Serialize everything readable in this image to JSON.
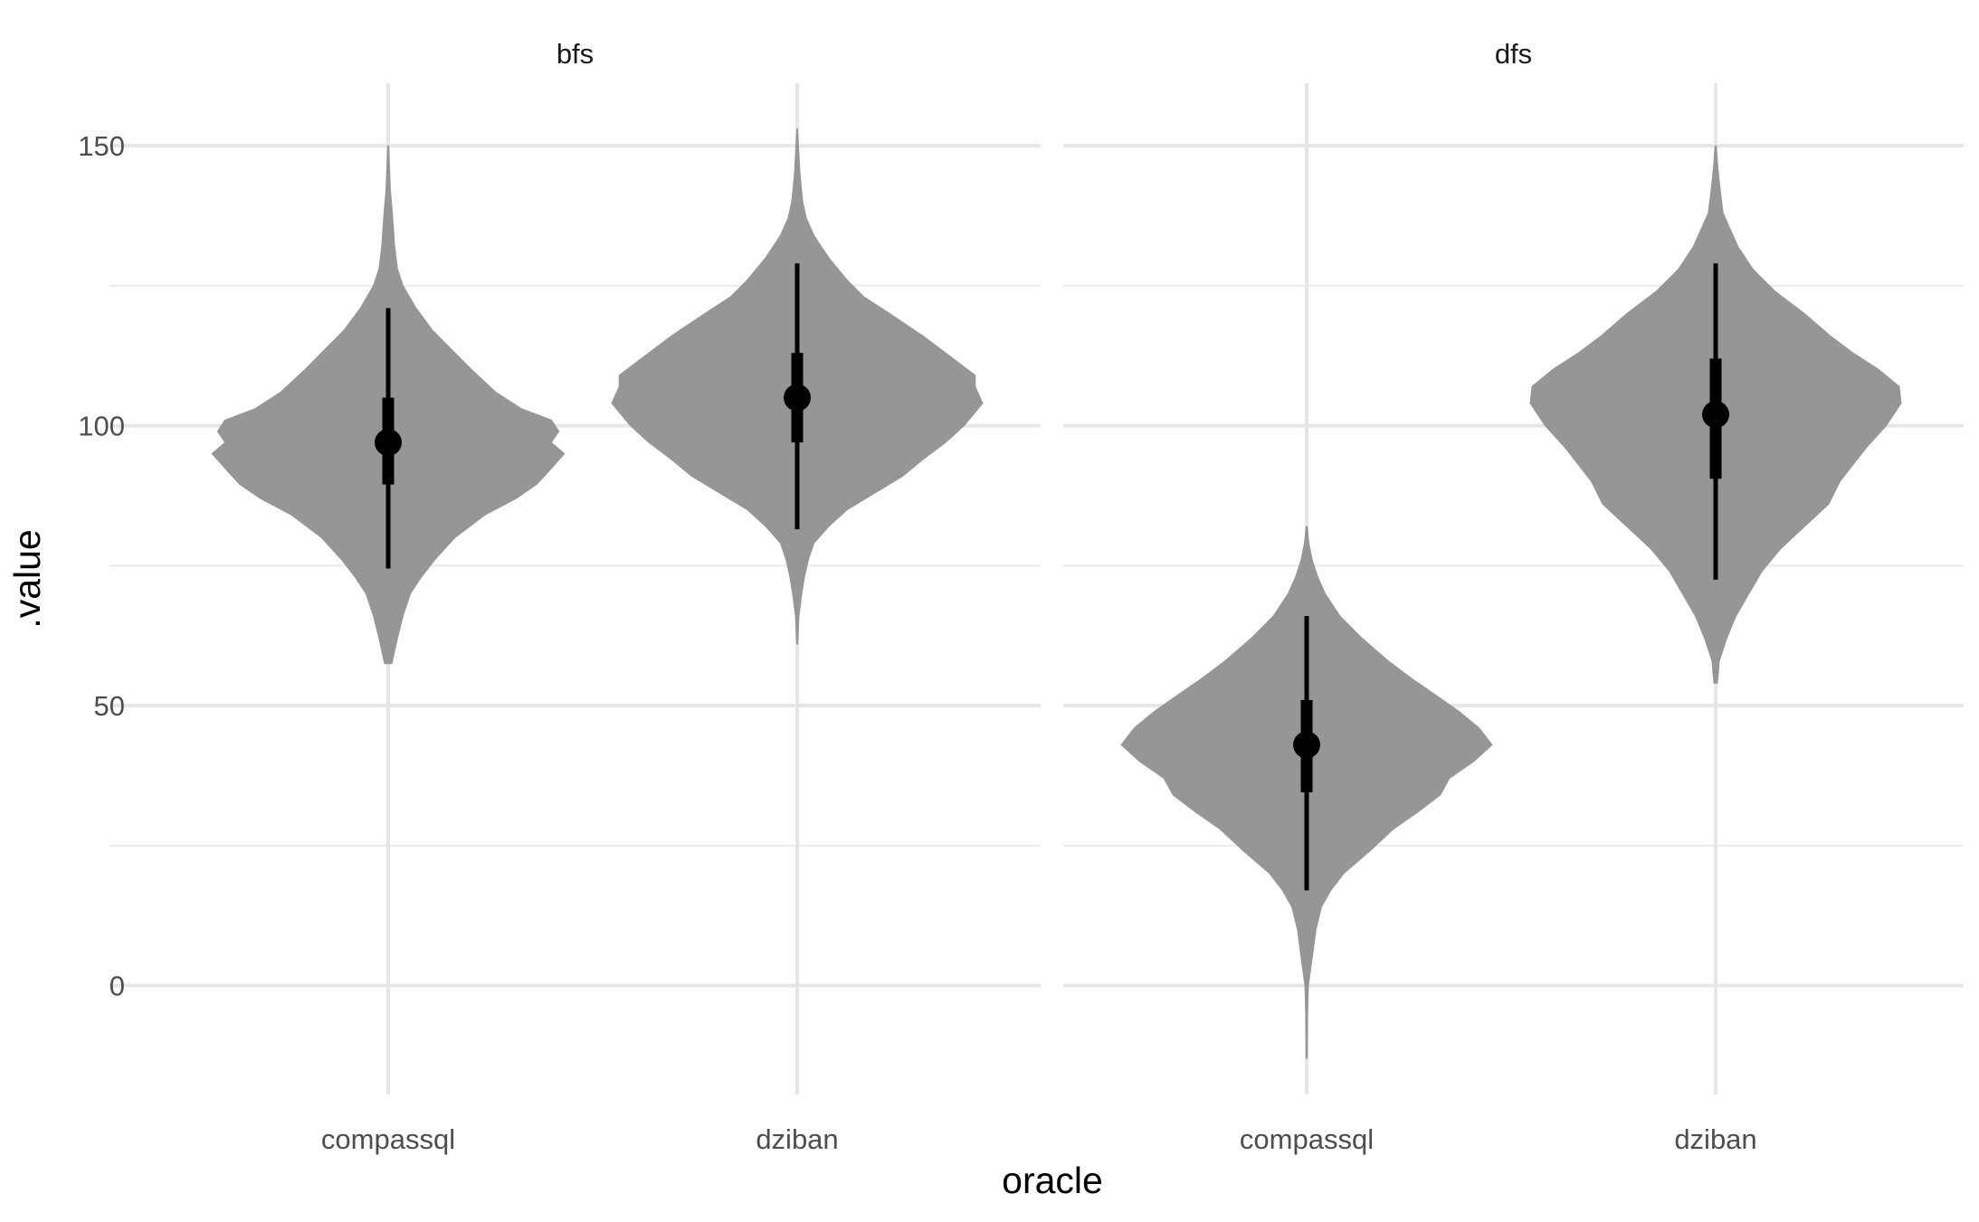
{
  "chart_data": {
    "type": "violin",
    "facets": [
      "bfs",
      "dfs"
    ],
    "categories": [
      "compassql",
      "dziban"
    ],
    "xlabel": "oracle",
    "ylabel": ".value",
    "ylim": [
      -20,
      160
    ],
    "yticks": [
      0,
      50,
      100,
      150
    ],
    "grid": true,
    "fill_color": "#969696",
    "point_color": "#000000",
    "groups": [
      {
        "facet": "bfs",
        "category": "compassql",
        "point": 97,
        "interval_inner": [
          89.5,
          105
        ],
        "interval_outer": [
          74.5,
          121
        ],
        "range": [
          57.5,
          150
        ],
        "density": [
          [
            57.5,
            0.02
          ],
          [
            62,
            0.05
          ],
          [
            66,
            0.08
          ],
          [
            70,
            0.12
          ],
          [
            73,
            0.18
          ],
          [
            76,
            0.25
          ],
          [
            80,
            0.36
          ],
          [
            84,
            0.52
          ],
          [
            87,
            0.69
          ],
          [
            89.5,
            0.8
          ],
          [
            92,
            0.87
          ],
          [
            95,
            0.95
          ],
          [
            97,
            0.88
          ],
          [
            99,
            0.92
          ],
          [
            101,
            0.88
          ],
          [
            103,
            0.72
          ],
          [
            106,
            0.58
          ],
          [
            110,
            0.45
          ],
          [
            114,
            0.33
          ],
          [
            117,
            0.24
          ],
          [
            121,
            0.15
          ],
          [
            125,
            0.08
          ],
          [
            128,
            0.05
          ],
          [
            132,
            0.035
          ],
          [
            137,
            0.025
          ],
          [
            142,
            0.012
          ],
          [
            150,
            0.003
          ]
        ]
      },
      {
        "facet": "bfs",
        "category": "dziban",
        "point": 105,
        "interval_inner": [
          97,
          113
        ],
        "interval_outer": [
          81.5,
          129
        ],
        "range": [
          61,
          153
        ],
        "density": [
          [
            61,
            0.003
          ],
          [
            66,
            0.01
          ],
          [
            70,
            0.025
          ],
          [
            73,
            0.04
          ],
          [
            76,
            0.06
          ],
          [
            79,
            0.09
          ],
          [
            82,
            0.17
          ],
          [
            85,
            0.27
          ],
          [
            88,
            0.42
          ],
          [
            91,
            0.57
          ],
          [
            94,
            0.68
          ],
          [
            97,
            0.8
          ],
          [
            100,
            0.9
          ],
          [
            104,
            1.0
          ],
          [
            107,
            0.96
          ],
          [
            109,
            0.96
          ],
          [
            112,
            0.84
          ],
          [
            116,
            0.68
          ],
          [
            120,
            0.5
          ],
          [
            123,
            0.36
          ],
          [
            126,
            0.27
          ],
          [
            130,
            0.17
          ],
          [
            134,
            0.09
          ],
          [
            137,
            0.05
          ],
          [
            140,
            0.03
          ],
          [
            145,
            0.015
          ],
          [
            153,
            0.002
          ]
        ]
      },
      {
        "facet": "dfs",
        "category": "compassql",
        "point": 43,
        "interval_inner": [
          34.5,
          51
        ],
        "interval_outer": [
          17,
          66
        ],
        "range": [
          -13,
          82
        ],
        "density": [
          [
            -13,
            0.003
          ],
          [
            -5,
            0.005
          ],
          [
            0,
            0.01
          ],
          [
            5,
            0.03
          ],
          [
            10,
            0.05
          ],
          [
            14,
            0.08
          ],
          [
            17,
            0.13
          ],
          [
            20,
            0.2
          ],
          [
            24,
            0.34
          ],
          [
            28,
            0.47
          ],
          [
            31,
            0.6
          ],
          [
            34,
            0.72
          ],
          [
            37,
            0.77
          ],
          [
            40,
            0.9
          ],
          [
            43,
            1.0
          ],
          [
            46,
            0.93
          ],
          [
            49,
            0.82
          ],
          [
            52,
            0.69
          ],
          [
            55,
            0.56
          ],
          [
            58,
            0.44
          ],
          [
            62,
            0.3
          ],
          [
            66,
            0.18
          ],
          [
            70,
            0.1
          ],
          [
            73,
            0.06
          ],
          [
            76,
            0.03
          ],
          [
            79,
            0.012
          ],
          [
            82,
            0.003
          ]
        ]
      },
      {
        "facet": "dfs",
        "category": "dziban",
        "point": 102,
        "interval_inner": [
          90.5,
          112
        ],
        "interval_outer": [
          72.5,
          129
        ],
        "range": [
          54,
          150
        ],
        "density": [
          [
            54,
            0.01
          ],
          [
            58,
            0.02
          ],
          [
            62,
            0.06
          ],
          [
            66,
            0.11
          ],
          [
            70,
            0.18
          ],
          [
            74,
            0.25
          ],
          [
            78,
            0.35
          ],
          [
            82,
            0.48
          ],
          [
            86,
            0.61
          ],
          [
            90,
            0.67
          ],
          [
            93,
            0.74
          ],
          [
            96,
            0.81
          ],
          [
            100,
            0.92
          ],
          [
            104,
            1.0
          ],
          [
            107,
            0.99
          ],
          [
            110,
            0.88
          ],
          [
            113,
            0.74
          ],
          [
            116,
            0.62
          ],
          [
            120,
            0.48
          ],
          [
            124,
            0.32
          ],
          [
            128,
            0.2
          ],
          [
            132,
            0.12
          ],
          [
            135,
            0.08
          ],
          [
            138,
            0.04
          ],
          [
            142,
            0.025
          ],
          [
            146,
            0.012
          ],
          [
            150,
            0.003
          ]
        ]
      }
    ]
  }
}
